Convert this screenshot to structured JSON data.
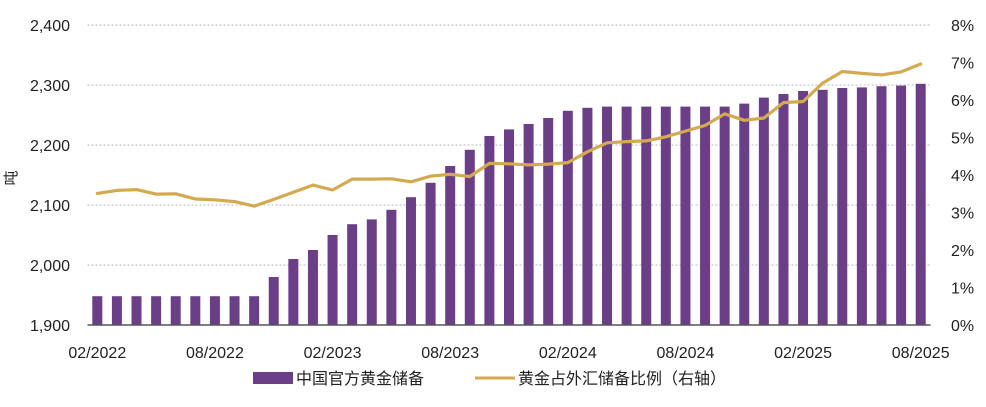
{
  "chart_data": {
    "type": "bar+line",
    "title": "",
    "xlabel": "",
    "ylabel": "吨",
    "y2label": "",
    "ylim": [
      1900,
      2400
    ],
    "y2lim": [
      0,
      8
    ],
    "yticks": [
      "1,900",
      "2,000",
      "2,100",
      "2,200",
      "2,300",
      "2,400"
    ],
    "yticks_values": [
      1900,
      2000,
      2100,
      2200,
      2300,
      2400
    ],
    "y2ticks": [
      "0%",
      "1%",
      "2%",
      "3%",
      "4%",
      "5%",
      "6%",
      "7%",
      "8%"
    ],
    "y2ticks_values": [
      0,
      1,
      2,
      3,
      4,
      5,
      6,
      7,
      8
    ],
    "xtick_labels": [
      "02/2022",
      "08/2022",
      "02/2023",
      "08/2023",
      "02/2024",
      "08/2024",
      "02/2025",
      "08/2025"
    ],
    "xtick_indices": [
      0,
      6,
      12,
      18,
      24,
      30,
      36,
      42
    ],
    "grid": "horizontal dashed",
    "legend_position": "bottom",
    "categories": [
      "02/2022",
      "03/2022",
      "04/2022",
      "05/2022",
      "06/2022",
      "07/2022",
      "08/2022",
      "09/2022",
      "10/2022",
      "11/2022",
      "12/2022",
      "01/2023",
      "02/2023",
      "03/2023",
      "04/2023",
      "05/2023",
      "06/2023",
      "07/2023",
      "08/2023",
      "09/2023",
      "10/2023",
      "11/2023",
      "12/2023",
      "01/2024",
      "02/2024",
      "03/2024",
      "04/2024",
      "05/2024",
      "06/2024",
      "07/2024",
      "08/2024",
      "09/2024",
      "10/2024",
      "11/2024",
      "12/2024",
      "01/2025",
      "02/2025",
      "03/2025",
      "04/2025",
      "05/2025",
      "06/2025",
      "07/2025",
      "08/2025"
    ],
    "series": [
      {
        "name": "中国官方黄金储备",
        "type": "bar",
        "axis": "left",
        "color": "#6B3F88",
        "values": [
          1948,
          1948,
          1948,
          1948,
          1948,
          1948,
          1948,
          1948,
          1948,
          1980,
          2010,
          2025,
          2050,
          2068,
          2076,
          2092,
          2113,
          2137,
          2165,
          2192,
          2215,
          2226,
          2235,
          2245,
          2257,
          2262,
          2264,
          2264,
          2264,
          2264,
          2264,
          2264,
          2264,
          2269,
          2279,
          2285,
          2290,
          2292,
          2295,
          2296,
          2298,
          2299,
          2302
        ]
      },
      {
        "name": "黄金占外汇储备比例（右轴）",
        "type": "line",
        "axis": "right",
        "color": "#D4AA50",
        "values": [
          3.51,
          3.59,
          3.61,
          3.49,
          3.5,
          3.36,
          3.34,
          3.29,
          3.17,
          3.35,
          3.54,
          3.73,
          3.6,
          3.89,
          3.89,
          3.9,
          3.82,
          3.97,
          4.02,
          3.96,
          4.31,
          4.3,
          4.27,
          4.29,
          4.33,
          4.62,
          4.86,
          4.89,
          4.91,
          5.02,
          5.17,
          5.32,
          5.63,
          5.46,
          5.52,
          5.93,
          5.96,
          6.45,
          6.76,
          6.71,
          6.67,
          6.75,
          6.96
        ]
      }
    ]
  },
  "legend": {
    "bar_label": "中国官方黄金储备",
    "line_label": "黄金占外汇储备比例（右轴）"
  },
  "axes": {
    "unit_label": "吨"
  },
  "style": {
    "bar_color": "#6B3F88",
    "line_color": "#D4AA50",
    "grid_color": "#B8B8B8",
    "axis_color": "#555555",
    "text_color": "#222222"
  }
}
